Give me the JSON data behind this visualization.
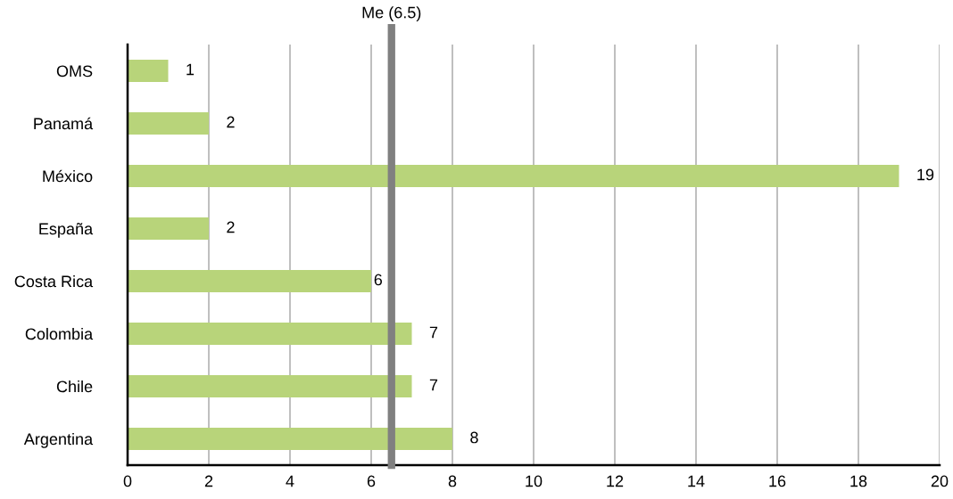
{
  "chart_data": {
    "type": "bar",
    "orientation": "horizontal",
    "categories": [
      "OMS",
      "Panamá",
      "México",
      "España",
      "Costa Rica",
      "Colombia",
      "Chile",
      "Argentina"
    ],
    "values": [
      1,
      2,
      19,
      2,
      6,
      7,
      7,
      8
    ],
    "color": "#b8d47a",
    "xlim": [
      0,
      20
    ],
    "xticks": [
      0,
      2,
      4,
      6,
      8,
      10,
      12,
      14,
      16,
      18,
      20
    ],
    "grid": "x",
    "data_labels": true,
    "ref_lines": [
      {
        "axis": "x",
        "value": 6.5,
        "label": "Me (6.5)",
        "color": "#808080"
      }
    ]
  }
}
